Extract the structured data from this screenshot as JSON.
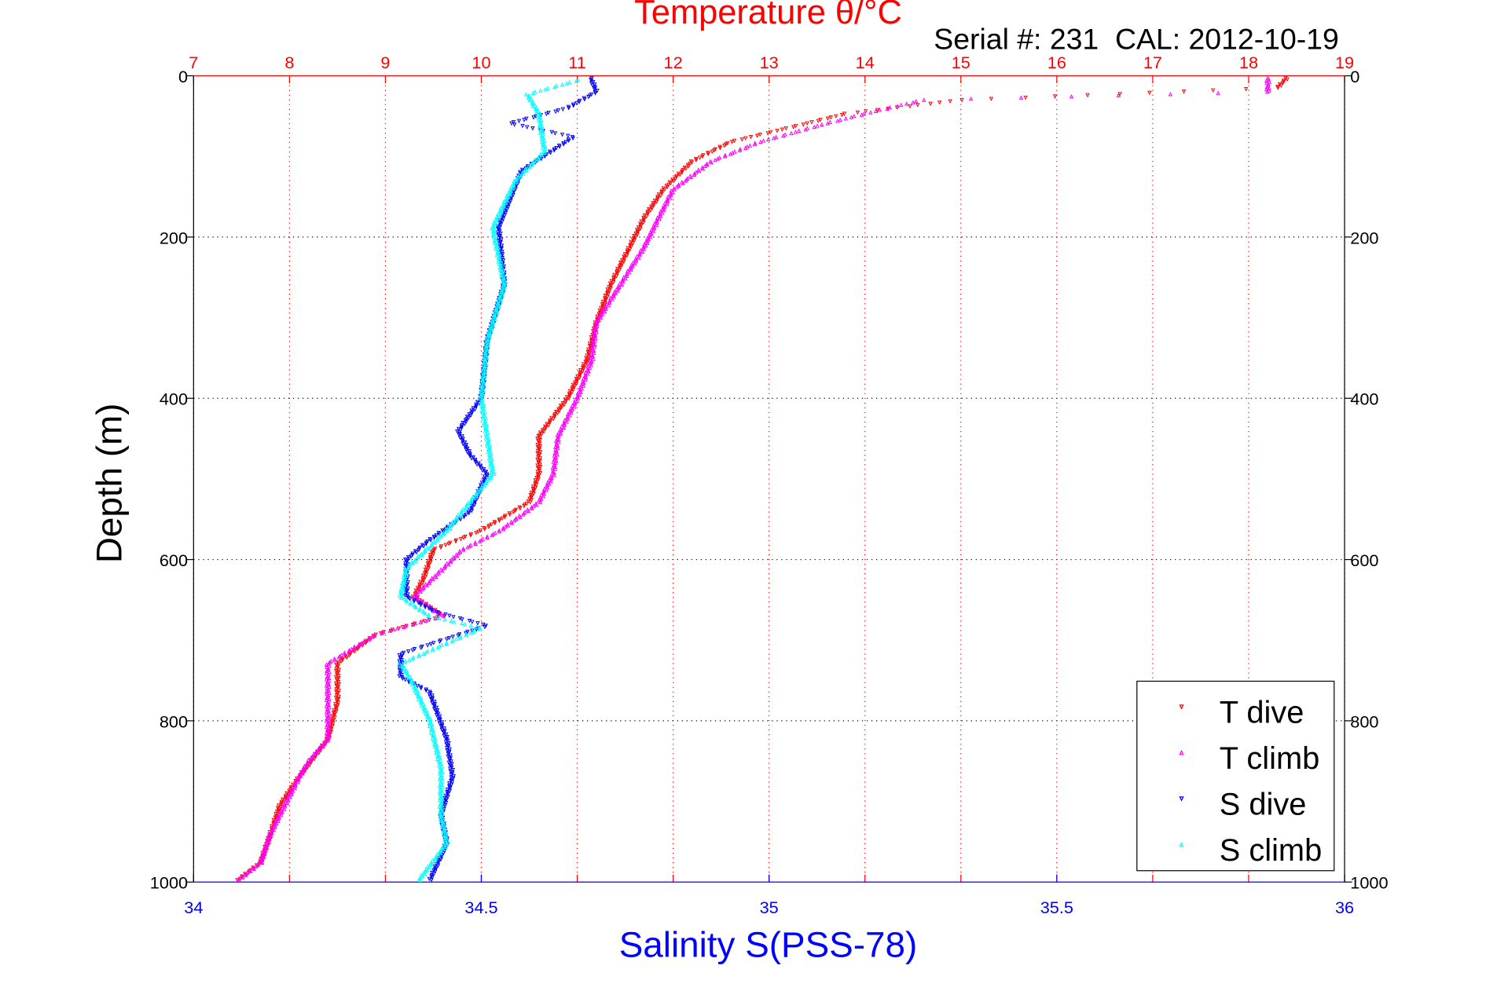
{
  "chart_data": {
    "type": "scatter",
    "title": "Temperature θ/°C",
    "subtitle": "Serial #: 231  CAL: 2012-10-19",
    "xlabel": "Salinity S(PSS-78)",
    "ylabel": "Depth (m)",
    "x_top_label": "Temperature θ/°C",
    "x_top_lim": [
      7,
      19
    ],
    "x_top_ticks": [
      "7",
      "8",
      "9",
      "10",
      "11",
      "12",
      "13",
      "14",
      "15",
      "16",
      "17",
      "18",
      "19"
    ],
    "x_bottom_lim": [
      34,
      36
    ],
    "x_bottom_ticks": [
      "34",
      "34.5",
      "35",
      "35.5",
      "36"
    ],
    "ylim": [
      0,
      1000
    ],
    "y_ticks": [
      "0",
      "200",
      "400",
      "600",
      "800",
      "1000"
    ],
    "y_reversed": true,
    "grid": true,
    "legend_position": "bottom-right",
    "colors": {
      "T dive": "#ff0000",
      "T climb": "#ff00ff",
      "S dive": "#0000ff",
      "S climb": "#00ffff",
      "top_axis": "#ff0000",
      "bottom_axis": "#0000ff"
    },
    "series": [
      {
        "name": "T dive",
        "axis": "top",
        "marker": "triangle-down",
        "points": [
          [
            3,
            18.4
          ],
          [
            15,
            18.3
          ],
          [
            30,
            15.0
          ],
          [
            47,
            13.8
          ],
          [
            59,
            13.4
          ],
          [
            82,
            12.6
          ],
          [
            106,
            12.2
          ],
          [
            141,
            11.9
          ],
          [
            176,
            11.7
          ],
          [
            212,
            11.55
          ],
          [
            259,
            11.35
          ],
          [
            306,
            11.2
          ],
          [
            353,
            11.1
          ],
          [
            400,
            10.9
          ],
          [
            447,
            10.6
          ],
          [
            494,
            10.6
          ],
          [
            529,
            10.5
          ],
          [
            564,
            10.0
          ],
          [
            588,
            9.5
          ],
          [
            623,
            9.4
          ],
          [
            646,
            9.3
          ],
          [
            670,
            9.6
          ],
          [
            693,
            8.9
          ],
          [
            729,
            8.5
          ],
          [
            776,
            8.5
          ],
          [
            823,
            8.4
          ],
          [
            870,
            8.1
          ],
          [
            905,
            7.9
          ],
          [
            941,
            7.8
          ],
          [
            976,
            7.7
          ],
          [
            999,
            7.45
          ]
        ]
      },
      {
        "name": "T climb",
        "axis": "top",
        "marker": "triangle-up",
        "points": [
          [
            3,
            18.2
          ],
          [
            20,
            18.2
          ],
          [
            30,
            14.6
          ],
          [
            47,
            14.0
          ],
          [
            59,
            13.6
          ],
          [
            82,
            12.9
          ],
          [
            106,
            12.4
          ],
          [
            141,
            12.0
          ],
          [
            176,
            11.85
          ],
          [
            212,
            11.7
          ],
          [
            259,
            11.45
          ],
          [
            306,
            11.2
          ],
          [
            353,
            11.15
          ],
          [
            400,
            11.0
          ],
          [
            447,
            10.8
          ],
          [
            494,
            10.75
          ],
          [
            529,
            10.6
          ],
          [
            564,
            10.2
          ],
          [
            588,
            9.8
          ],
          [
            623,
            9.5
          ],
          [
            646,
            9.3
          ],
          [
            670,
            9.6
          ],
          [
            693,
            8.9
          ],
          [
            729,
            8.4
          ],
          [
            776,
            8.4
          ],
          [
            823,
            8.4
          ],
          [
            850,
            8.2
          ],
          [
            870,
            8.1
          ],
          [
            905,
            7.95
          ],
          [
            941,
            7.8
          ],
          [
            976,
            7.7
          ],
          [
            999,
            7.45
          ]
        ]
      },
      {
        "name": "S dive",
        "axis": "bottom",
        "marker": "triangle-down",
        "points": [
          [
            3,
            34.69
          ],
          [
            20,
            34.7
          ],
          [
            40,
            34.65
          ],
          [
            59,
            34.55
          ],
          [
            76,
            34.66
          ],
          [
            118,
            34.57
          ],
          [
            188,
            34.53
          ],
          [
            259,
            34.54
          ],
          [
            329,
            34.51
          ],
          [
            400,
            34.5
          ],
          [
            441,
            34.46
          ],
          [
            470,
            34.48
          ],
          [
            494,
            34.51
          ],
          [
            541,
            34.48
          ],
          [
            576,
            34.41
          ],
          [
            600,
            34.37
          ],
          [
            646,
            34.37
          ],
          [
            665,
            34.42
          ],
          [
            682,
            34.51
          ],
          [
            717,
            34.36
          ],
          [
            746,
            34.36
          ],
          [
            764,
            34.41
          ],
          [
            823,
            34.44
          ],
          [
            870,
            34.45
          ],
          [
            917,
            34.43
          ],
          [
            952,
            34.44
          ],
          [
            999,
            34.41
          ]
        ]
      },
      {
        "name": "S climb",
        "axis": "bottom",
        "marker": "triangle-up",
        "points": [
          [
            5,
            34.67
          ],
          [
            23,
            34.58
          ],
          [
            47,
            34.6
          ],
          [
            94,
            34.61
          ],
          [
            129,
            34.56
          ],
          [
            188,
            34.52
          ],
          [
            259,
            34.54
          ],
          [
            329,
            34.51
          ],
          [
            400,
            34.5
          ],
          [
            447,
            34.51
          ],
          [
            494,
            34.52
          ],
          [
            564,
            34.44
          ],
          [
            611,
            34.37
          ],
          [
            646,
            34.36
          ],
          [
            670,
            34.41
          ],
          [
            685,
            34.5
          ],
          [
            729,
            34.36
          ],
          [
            752,
            34.38
          ],
          [
            799,
            34.41
          ],
          [
            858,
            34.43
          ],
          [
            917,
            34.43
          ],
          [
            952,
            34.44
          ],
          [
            999,
            34.39
          ]
        ]
      }
    ]
  }
}
